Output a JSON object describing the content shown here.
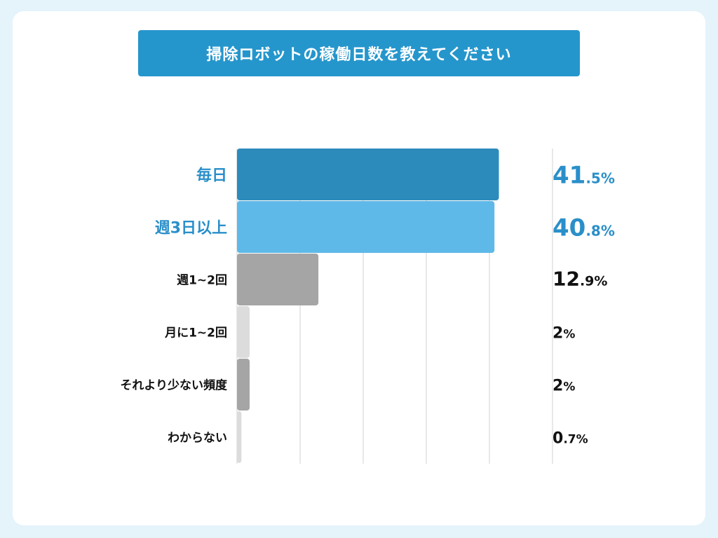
{
  "title": "掃除ロボットの稼働日数を教えてください",
  "colors": {
    "background": "#e5f3fb",
    "card": "#ffffff",
    "title_bg": "#2596cc",
    "accent_text": "#2a8fc9",
    "dark_text": "#111111",
    "gridline": "#d0d0d0"
  },
  "chart_data": {
    "type": "bar",
    "orientation": "horizontal",
    "title": "掃除ロボットの稼働日数を教えてください",
    "xlim": [
      0,
      50
    ],
    "grid": true,
    "categories": [
      "毎日",
      "週3日以上",
      "週1~2回",
      "月に1~2回",
      "それより少ない頻度",
      "わからない"
    ],
    "values": [
      41.5,
      40.8,
      12.9,
      2,
      2,
      0.7
    ],
    "value_labels": [
      {
        "main": "41",
        "sub": ".5%"
      },
      {
        "main": "40",
        "sub": ".8%"
      },
      {
        "main": "12",
        "sub": ".9%"
      },
      {
        "main": "2",
        "sub": "%"
      },
      {
        "main": "2",
        "sub": "%"
      },
      {
        "main": "0",
        "sub": ".7%"
      }
    ],
    "bar_colors": [
      "#2c8bbb",
      "#5fb9e8",
      "#a5a5a5",
      "#dcdcdc",
      "#a5a5a5",
      "#dcdcdc"
    ],
    "label_colors": [
      "#2a8fc9",
      "#2a8fc9",
      "#111111",
      "#111111",
      "#111111",
      "#111111"
    ]
  }
}
